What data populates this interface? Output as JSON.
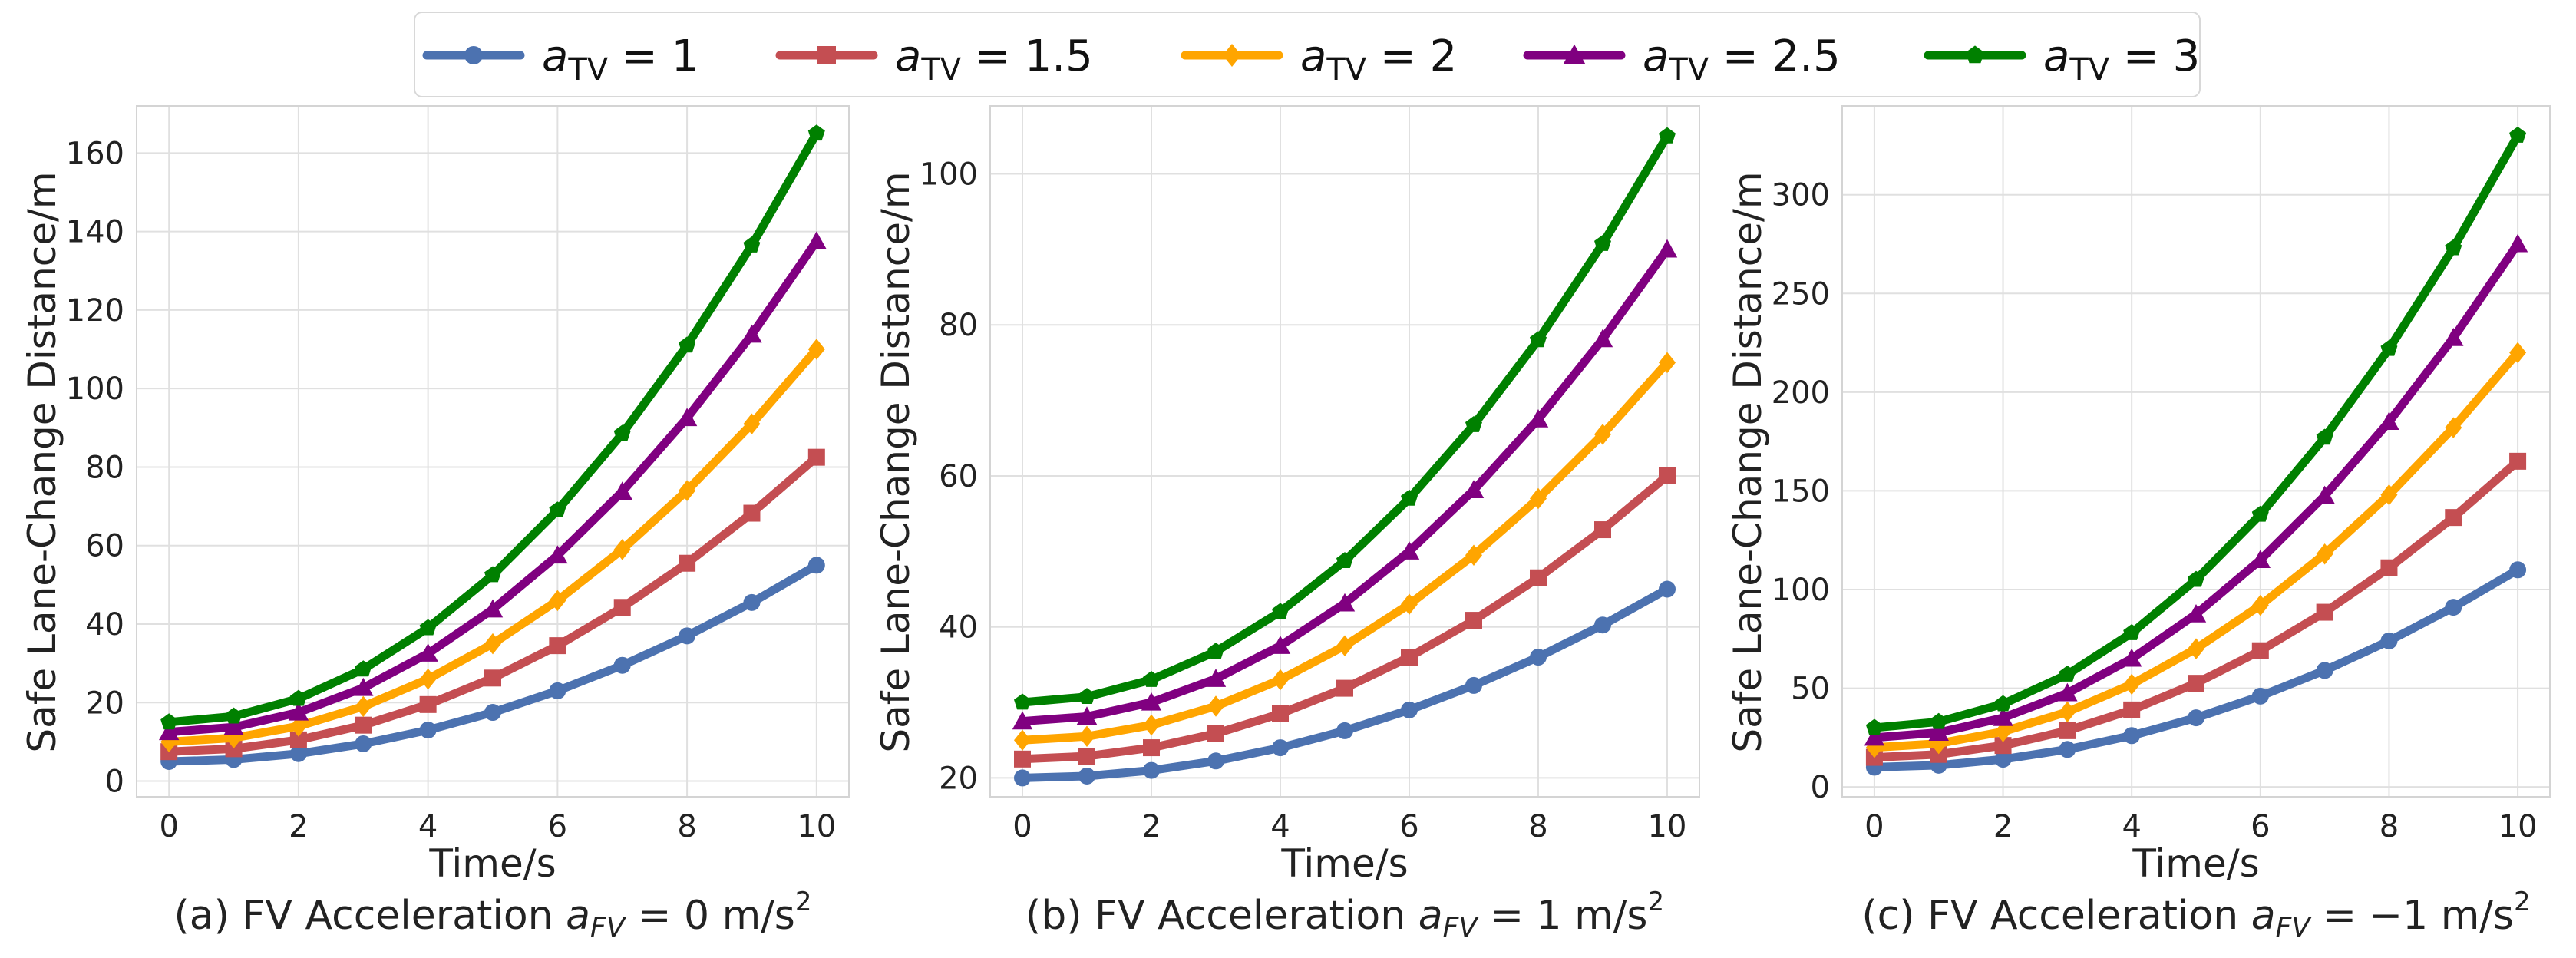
{
  "legend": {
    "placement": "top-center",
    "entries": [
      {
        "var": "a",
        "sub": "TV",
        "value": "1",
        "color": "#4c72b0",
        "marker": "circle"
      },
      {
        "var": "a",
        "sub": "TV",
        "value": "1.5",
        "color": "#c44e52",
        "marker": "square"
      },
      {
        "var": "a",
        "sub": "TV",
        "value": "2",
        "color": "#ffa500",
        "marker": "diamond"
      },
      {
        "var": "a",
        "sub": "TV",
        "value": "2.5",
        "color": "#800080",
        "marker": "triangle"
      },
      {
        "var": "a",
        "sub": "TV",
        "value": "3",
        "color": "#008000",
        "marker": "pentagon"
      }
    ]
  },
  "chart_data": [
    {
      "type": "line",
      "caption": {
        "prefix": "(a) FV Acceleration ",
        "var": "a",
        "sub": "FV",
        "relation": " = 0 m/s",
        "sup": "2"
      },
      "xlabel": "Time/s",
      "ylabel": "Safe Lane-Change Distance/m",
      "x": [
        0,
        1,
        2,
        3,
        4,
        5,
        6,
        7,
        8,
        9,
        10
      ],
      "xlim": [
        -0.5,
        10.5
      ],
      "ylim": [
        -4,
        172
      ],
      "xticks": [
        0,
        2,
        4,
        6,
        8,
        10
      ],
      "yticks": [
        0,
        20,
        40,
        60,
        80,
        100,
        120,
        140,
        160
      ],
      "grid": true,
      "series": [
        {
          "name": "a_TV = 1",
          "values": [
            5,
            5.5,
            7,
            9.5,
            13,
            17.5,
            23,
            29.5,
            37,
            45.5,
            55
          ]
        },
        {
          "name": "a_TV = 1.5",
          "values": [
            7.5,
            8.25,
            10.5,
            14.25,
            19.5,
            26.25,
            34.5,
            44.25,
            55.5,
            68.25,
            82.5
          ]
        },
        {
          "name": "a_TV = 2",
          "values": [
            10,
            11,
            14,
            19,
            26,
            35,
            46,
            59,
            74,
            91,
            110
          ]
        },
        {
          "name": "a_TV = 2.5",
          "values": [
            12.5,
            13.75,
            17.5,
            23.75,
            32.5,
            43.75,
            57.5,
            73.75,
            92.5,
            113.75,
            137.5
          ]
        },
        {
          "name": "a_TV = 3",
          "values": [
            15,
            16.5,
            21,
            28.5,
            39,
            52.5,
            69,
            88.5,
            111,
            136.5,
            165
          ]
        }
      ]
    },
    {
      "type": "line",
      "caption": {
        "prefix": "(b) FV Acceleration ",
        "var": "a",
        "sub": "FV",
        "relation": " = 1 m/s",
        "sup": "2"
      },
      "xlabel": "Time/s",
      "ylabel": "Safe Lane-Change Distance/m",
      "x": [
        0,
        1,
        2,
        3,
        4,
        5,
        6,
        7,
        8,
        9,
        10
      ],
      "xlim": [
        -0.5,
        10.5
      ],
      "ylim": [
        17.5,
        109
      ],
      "xticks": [
        0,
        2,
        4,
        6,
        8,
        10
      ],
      "yticks": [
        20,
        40,
        60,
        80,
        100
      ],
      "grid": true,
      "series": [
        {
          "name": "a_TV = 1",
          "values": [
            20,
            20.25,
            21,
            22.25,
            24,
            26.25,
            29,
            32.25,
            36,
            40.25,
            45
          ]
        },
        {
          "name": "a_TV = 1.5",
          "values": [
            22.5,
            22.875,
            24,
            25.875,
            28.5,
            31.875,
            36,
            40.875,
            46.5,
            52.875,
            60
          ]
        },
        {
          "name": "a_TV = 2",
          "values": [
            25,
            25.5,
            27,
            29.5,
            33,
            37.5,
            43,
            49.5,
            57,
            65.5,
            75
          ]
        },
        {
          "name": "a_TV = 2.5",
          "values": [
            27.5,
            28.125,
            30,
            33.125,
            37.5,
            43.125,
            50,
            58.125,
            67.5,
            78.125,
            90
          ]
        },
        {
          "name": "a_TV = 3",
          "values": [
            30,
            30.75,
            33,
            36.75,
            42,
            48.75,
            57,
            66.75,
            78,
            90.75,
            105
          ]
        }
      ]
    },
    {
      "type": "line",
      "caption": {
        "prefix": "(c) FV Acceleration ",
        "var": "a",
        "sub": "FV",
        "relation": " = −1 m/s",
        "sup": "2"
      },
      "xlabel": "Time/s",
      "ylabel": "Safe Lane-Change Distance/m",
      "x": [
        0,
        1,
        2,
        3,
        4,
        5,
        6,
        7,
        8,
        9,
        10
      ],
      "xlim": [
        -0.5,
        10.5
      ],
      "ylim": [
        -5,
        345
      ],
      "xticks": [
        0,
        2,
        4,
        6,
        8,
        10
      ],
      "yticks": [
        0,
        50,
        100,
        150,
        200,
        250,
        300
      ],
      "grid": true,
      "series": [
        {
          "name": "a_TV = 1",
          "values": [
            10,
            11,
            14,
            19,
            26,
            35,
            46,
            59,
            74,
            91,
            110
          ]
        },
        {
          "name": "a_TV = 1.5",
          "values": [
            15,
            16.5,
            21,
            28.5,
            39,
            52.5,
            69,
            88.5,
            111,
            136.5,
            165
          ]
        },
        {
          "name": "a_TV = 2",
          "values": [
            20,
            22,
            28,
            38,
            52,
            70,
            92,
            118,
            148,
            182,
            220
          ]
        },
        {
          "name": "a_TV = 2.5",
          "values": [
            25,
            27.5,
            35,
            47.5,
            65,
            87.5,
            115,
            147.5,
            185,
            227.5,
            275
          ]
        },
        {
          "name": "a_TV = 3",
          "values": [
            30,
            33,
            42,
            57,
            78,
            105,
            138,
            177,
            222,
            273,
            330
          ]
        }
      ]
    }
  ]
}
